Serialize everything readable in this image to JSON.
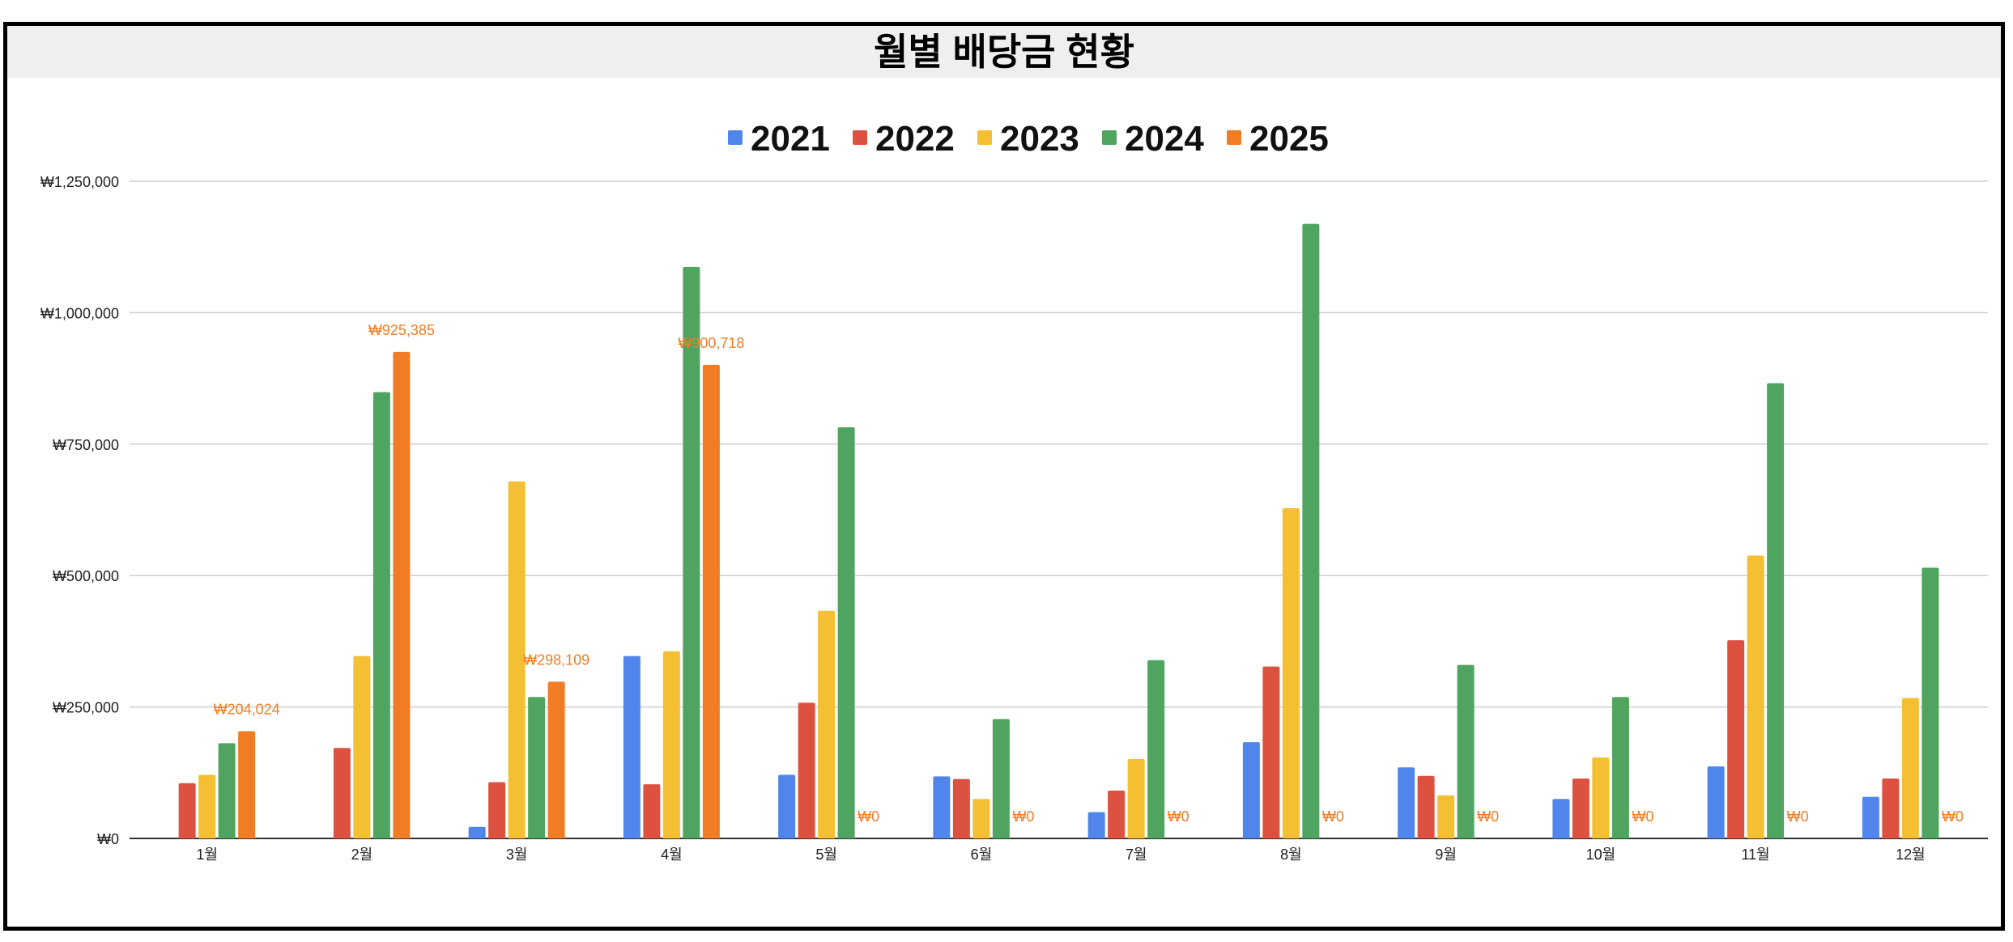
{
  "chart_data": {
    "type": "bar",
    "title": "월별 배당금 현황",
    "xlabel": "",
    "ylabel": "",
    "categories": [
      "1월",
      "2월",
      "3월",
      "4월",
      "5월",
      "6월",
      "7월",
      "8월",
      "9월",
      "10월",
      "11월",
      "12월"
    ],
    "ylim": [
      0,
      1250000
    ],
    "yticks": [
      0,
      250000,
      500000,
      750000,
      1000000,
      1250000
    ],
    "ytick_labels": [
      "₩0",
      "₩250,000",
      "₩500,000",
      "₩750,000",
      "₩1,000,000",
      "₩1,250,000"
    ],
    "grid": true,
    "legend_position": "top-center",
    "series": [
      {
        "name": "2021",
        "color": "#5086ec",
        "values": [
          0,
          0,
          22000,
          347000,
          121000,
          118000,
          50000,
          183000,
          135000,
          75000,
          137000,
          79000
        ]
      },
      {
        "name": "2022",
        "color": "#dd5140",
        "values": [
          105000,
          172000,
          107000,
          103000,
          258000,
          113000,
          91000,
          327000,
          119000,
          114000,
          377000,
          114000
        ]
      },
      {
        "name": "2023",
        "color": "#f4bf32",
        "values": [
          121000,
          347000,
          679000,
          356000,
          433000,
          75000,
          151000,
          628000,
          82000,
          154000,
          538000,
          267000
        ]
      },
      {
        "name": "2024",
        "color": "#4fa55f",
        "values": [
          181000,
          849000,
          269000,
          1087000,
          782000,
          227000,
          339000,
          1169000,
          330000,
          269000,
          866000,
          515000
        ]
      },
      {
        "name": "2025",
        "color": "#f07d26",
        "values": [
          204024,
          925385,
          298109,
          900718,
          0,
          0,
          0,
          0,
          0,
          0,
          0,
          0
        ],
        "data_labels": [
          "₩204,024",
          "₩925,385",
          "₩298,109",
          "₩900,718",
          "₩0",
          "₩0",
          "₩0",
          "₩0",
          "₩0",
          "₩0",
          "₩0",
          "₩0"
        ]
      }
    ]
  }
}
